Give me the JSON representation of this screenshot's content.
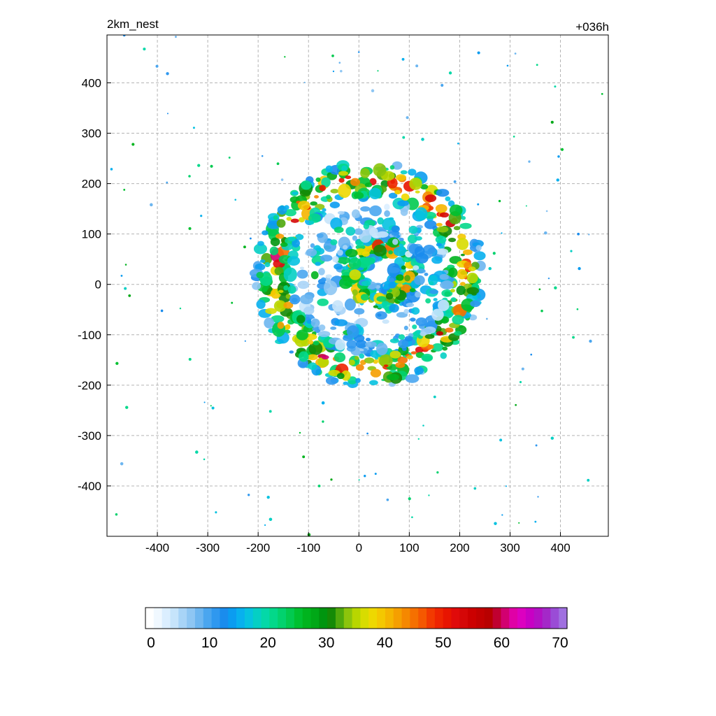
{
  "chart_data": {
    "type": "heatmap",
    "title_left": "2km_nest",
    "title_right": "+036h",
    "xlabel": "",
    "ylabel": "",
    "xlim": [
      -500,
      495
    ],
    "ylim": [
      -500,
      495
    ],
    "x_ticks": [
      -400,
      -300,
      -200,
      -100,
      0,
      100,
      200,
      300,
      400
    ],
    "y_ticks": [
      400,
      300,
      200,
      100,
      0,
      -100,
      -200,
      -300,
      -400
    ],
    "x_tick_labels": [
      "-400",
      "-300",
      "-200",
      "-100",
      "0",
      "100",
      "200",
      "300",
      "400"
    ],
    "y_tick_labels": [
      "400",
      "300",
      "200",
      "100",
      "0",
      "-100",
      "-200",
      "-300",
      "-400"
    ],
    "grid": true,
    "field": {
      "description_units": "reflectivity-like scalar, 0-70",
      "features": [
        {
          "kind": "eyewall_ring",
          "center": [
            40,
            20
          ],
          "radius": 55,
          "intensity": 34
        },
        {
          "kind": "outer_band",
          "center": [
            20,
            20
          ],
          "radius": 200,
          "intensity": 46
        }
      ]
    },
    "colorbar": {
      "min": 0,
      "max": 70,
      "tick_values": [
        0,
        10,
        20,
        30,
        40,
        50,
        60,
        70
      ],
      "tick_labels": [
        "0",
        "10",
        "20",
        "30",
        "40",
        "50",
        "60",
        "70"
      ],
      "colors": [
        "#ffffff",
        "#f0f8ff",
        "#dbeeff",
        "#c6e4fb",
        "#a8d4f7",
        "#8ec6f3",
        "#6db6f0",
        "#4aa6ef",
        "#2f98ef",
        "#1a8ced",
        "#0b9cf0",
        "#08b0ee",
        "#06c2e0",
        "#05cfc4",
        "#04d8a8",
        "#03d88a",
        "#02d26e",
        "#02ca50",
        "#00c030",
        "#00b41e",
        "#00a817",
        "#00950f",
        "#148a06",
        "#4fa90c",
        "#8cc40c",
        "#b8d600",
        "#d8dc00",
        "#eed800",
        "#f4c800",
        "#f5b500",
        "#f59f00",
        "#f58800",
        "#f57000",
        "#f55800",
        "#f23a00",
        "#ee2400",
        "#e81400",
        "#e00a0a",
        "#d50707",
        "#cc0000",
        "#c20000",
        "#b80000",
        "#c00030",
        "#d20070",
        "#e000a6",
        "#dc00c0",
        "#c800c4",
        "#b410c4",
        "#a428c8",
        "#9a4cd6",
        "#a070e0"
      ]
    }
  }
}
